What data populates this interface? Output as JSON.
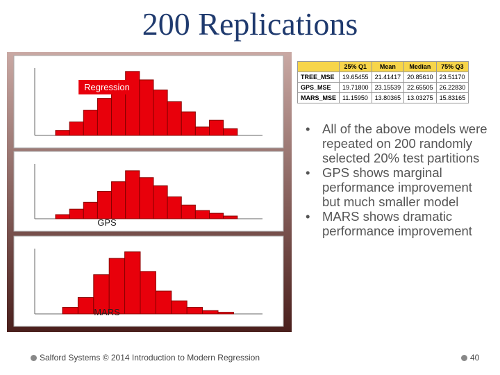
{
  "title": "200 Replications",
  "table": {
    "header": [
      "",
      "25% Q1",
      "Mean",
      "Median",
      "75% Q3"
    ],
    "rows": [
      [
        "TREE_MSE",
        "19.65455",
        "21.41417",
        "20.85610",
        "23.51170"
      ],
      [
        "GPS_MSE",
        "19.71800",
        "23.15539",
        "22.65505",
        "26.22830"
      ],
      [
        "MARS_MSE",
        "11.15950",
        "13.80365",
        "13.03275",
        "15.83165"
      ]
    ]
  },
  "bullets": [
    "All of the above models were repeated on 200 randomly selected 20% test partitions",
    "GPS shows marginal performance improvement but much smaller model",
    "MARS shows dramatic performance improvement"
  ],
  "footer": {
    "text": "Salford Systems © 2014 Introduction to Modern Regression",
    "page": "40"
  },
  "chart_data": [
    {
      "type": "bar",
      "title": "Regression",
      "color": "#e8000b",
      "ylim": [
        0,
        40
      ],
      "categories": [
        null,
        null,
        null,
        null,
        null,
        null,
        null,
        null,
        null,
        null,
        null,
        null,
        null
      ],
      "values": [
        3,
        8,
        15,
        22,
        30,
        38,
        33,
        27,
        20,
        14,
        5,
        9,
        4
      ]
    },
    {
      "type": "bar",
      "title": "GPS",
      "color": "#e8000b",
      "ylim": [
        0,
        40
      ],
      "categories": [
        null,
        null,
        null,
        null,
        null,
        null,
        null,
        null,
        null,
        null,
        null,
        null,
        null
      ],
      "values": [
        3,
        7,
        12,
        20,
        27,
        35,
        30,
        24,
        16,
        10,
        6,
        4,
        2
      ]
    },
    {
      "type": "bar",
      "title": "MARS",
      "color": "#e8000b",
      "ylim": [
        0,
        40
      ],
      "categories": [
        null,
        null,
        null,
        null,
        null,
        null,
        null,
        null,
        null,
        null,
        null
      ],
      "values": [
        4,
        10,
        24,
        34,
        38,
        26,
        14,
        8,
        4,
        2,
        1
      ]
    }
  ]
}
